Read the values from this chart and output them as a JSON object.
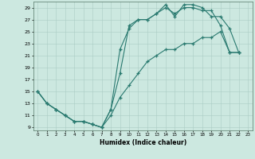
{
  "xlabel": "Humidex (Indice chaleur)",
  "bg_color": "#cce8e0",
  "grid_color": "#aaccC4",
  "line_color": "#2a7a70",
  "xlim": [
    -0.5,
    23.5
  ],
  "ylim": [
    8.5,
    30.0
  ],
  "xticks": [
    0,
    1,
    2,
    3,
    4,
    5,
    6,
    7,
    8,
    9,
    10,
    11,
    12,
    13,
    14,
    15,
    16,
    17,
    18,
    19,
    20,
    21,
    22,
    23
  ],
  "yticks": [
    9,
    11,
    13,
    15,
    17,
    19,
    21,
    23,
    25,
    27,
    29
  ],
  "line1_x": [
    0,
    1,
    2,
    3,
    4,
    5,
    6,
    7,
    8,
    9,
    10,
    11,
    12,
    13,
    14,
    15,
    16,
    17,
    18,
    19,
    20,
    21,
    22
  ],
  "line1_y": [
    15,
    13,
    12,
    11,
    10,
    10,
    9.5,
    9,
    12,
    18,
    26,
    27,
    27,
    28,
    29,
    28,
    29,
    29,
    28.5,
    28.5,
    26,
    21.5,
    21.5
  ],
  "line2_x": [
    0,
    1,
    2,
    3,
    4,
    5,
    6,
    7,
    8,
    9,
    10,
    11,
    12,
    13,
    14,
    15,
    16,
    17,
    18,
    19,
    20,
    21,
    22
  ],
  "line2_y": [
    15,
    13,
    12,
    11,
    10,
    10,
    9.5,
    9,
    12,
    22,
    25.5,
    27,
    27,
    28,
    29.5,
    27.5,
    29.5,
    29.5,
    29,
    27.5,
    27.5,
    25.5,
    21.5
  ],
  "line3_x": [
    0,
    1,
    2,
    3,
    4,
    5,
    6,
    7,
    8,
    9,
    10,
    11,
    12,
    13,
    14,
    15,
    16,
    17,
    18,
    19,
    20,
    21,
    22
  ],
  "line3_y": [
    15,
    13,
    12,
    11,
    10,
    10,
    9.5,
    9,
    11,
    14,
    16,
    18,
    20,
    21,
    22,
    22,
    23,
    23,
    24,
    24,
    25,
    21.5,
    21.5
  ]
}
